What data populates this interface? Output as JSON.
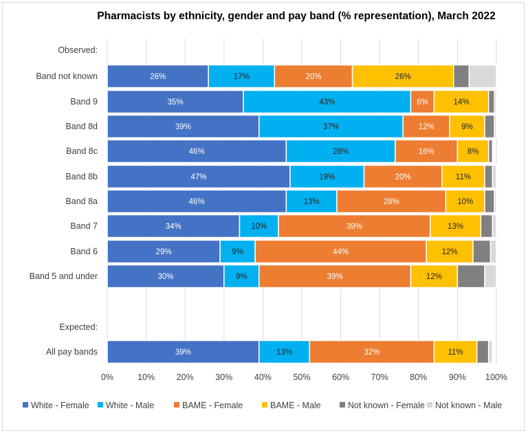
{
  "chart_data": {
    "type": "bar",
    "orientation": "horizontal",
    "stacked": true,
    "title": "Pharmacists by ethnicity, gender and pay band (% representation), March 2022",
    "xlim": [
      0,
      100
    ],
    "x_ticks": [
      "0%",
      "10%",
      "20%",
      "30%",
      "40%",
      "50%",
      "60%",
      "70%",
      "80%",
      "90%",
      "100%"
    ],
    "grid": true,
    "legend_position": "bottom",
    "group_labels": [
      "Observed:",
      "Expected:"
    ],
    "categories": [
      "Band not known",
      "Band 9",
      "Band 8d",
      "Band 8c",
      "Band 8b",
      "Band 8a",
      "Band 7",
      "Band 6",
      "Band 5 and under",
      "All pay bands"
    ],
    "series": [
      {
        "name": "White - Female",
        "color": "#4472c4",
        "label_color": "#ffffff",
        "values": [
          26,
          35,
          39,
          46,
          47,
          46,
          34,
          29,
          30,
          39
        ],
        "labels": [
          "26%",
          "35%",
          "39%",
          "46%",
          "47%",
          "46%",
          "34%",
          "29%",
          "30%",
          "39%"
        ]
      },
      {
        "name": "White - Male",
        "color": "#00b0f0",
        "label_color": "#262626",
        "values": [
          17,
          43,
          37,
          28,
          19,
          13,
          10,
          9,
          9,
          13
        ],
        "labels": [
          "17%",
          "43%",
          "37%",
          "28%",
          "19%",
          "13%",
          "10%",
          "9%",
          "9%",
          "13%"
        ]
      },
      {
        "name": "BAME - Female",
        "color": "#ed7d31",
        "label_color": "#ffffff",
        "values": [
          20,
          6,
          12,
          16,
          20,
          28,
          39,
          44,
          39,
          32
        ],
        "labels": [
          "20%",
          "6%",
          "12%",
          "16%",
          "20%",
          "28%",
          "39%",
          "44%",
          "39%",
          "32%"
        ]
      },
      {
        "name": "BAME - Male",
        "color": "#ffc000",
        "label_color": "#262626",
        "values": [
          26,
          14,
          9,
          8,
          11,
          10,
          13,
          12,
          12,
          11
        ],
        "labels": [
          "26%",
          "14%",
          "9%",
          "8%",
          "11%",
          "10%",
          "13%",
          "12%",
          "12%",
          "11%"
        ]
      },
      {
        "name": "Not known - Female",
        "color": "#808080",
        "label_color": "#ffffff",
        "values": [
          4,
          1.5,
          2.5,
          1,
          2,
          2.5,
          3,
          4.5,
          7,
          3
        ],
        "labels": [
          "",
          "",
          "",
          "",
          "",
          "",
          "",
          "",
          "",
          ""
        ]
      },
      {
        "name": "Not known - Male",
        "color": "#d9d9d9",
        "label_color": "#262626",
        "values": [
          7,
          0.5,
          0.5,
          0,
          1,
          0.5,
          1,
          1.5,
          3,
          1
        ],
        "labels": [
          "",
          "",
          "",
          "",
          "",
          "",
          "",
          "",
          "",
          ""
        ]
      }
    ]
  }
}
